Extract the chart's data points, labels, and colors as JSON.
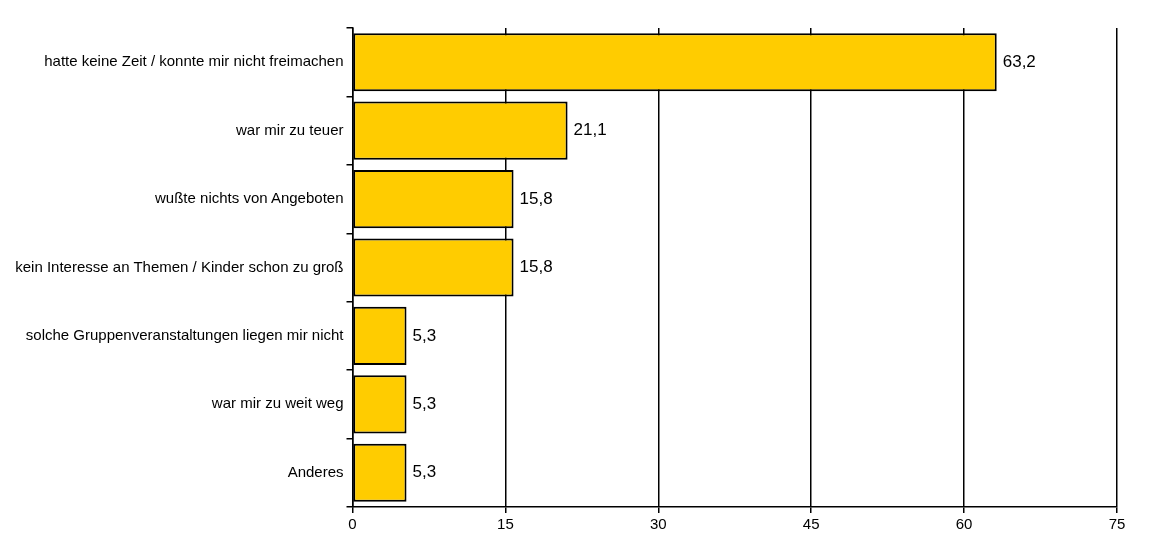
{
  "chart_data": {
    "type": "bar",
    "orientation": "horizontal",
    "categories": [
      "hatte keine Zeit / konnte mir nicht freimachen",
      "war mir zu teuer",
      "wußte nichts von Angeboten",
      "kein Interesse an Themen / Kinder schon zu groß",
      "solche Gruppenveranstaltungen liegen mir nicht",
      "war mir zu weit weg",
      "Anderes"
    ],
    "values": [
      63.2,
      21.1,
      15.8,
      15.8,
      5.3,
      5.3,
      5.3
    ],
    "value_labels": [
      "63,2",
      "21,1",
      "15,8",
      "15,8",
      "5,3",
      "5,3",
      "5,3"
    ],
    "color": "#ffcc00",
    "xlim": [
      0,
      75
    ],
    "xticks": [
      0,
      15,
      30,
      45,
      60,
      75
    ],
    "grid": "x",
    "legend": false
  }
}
